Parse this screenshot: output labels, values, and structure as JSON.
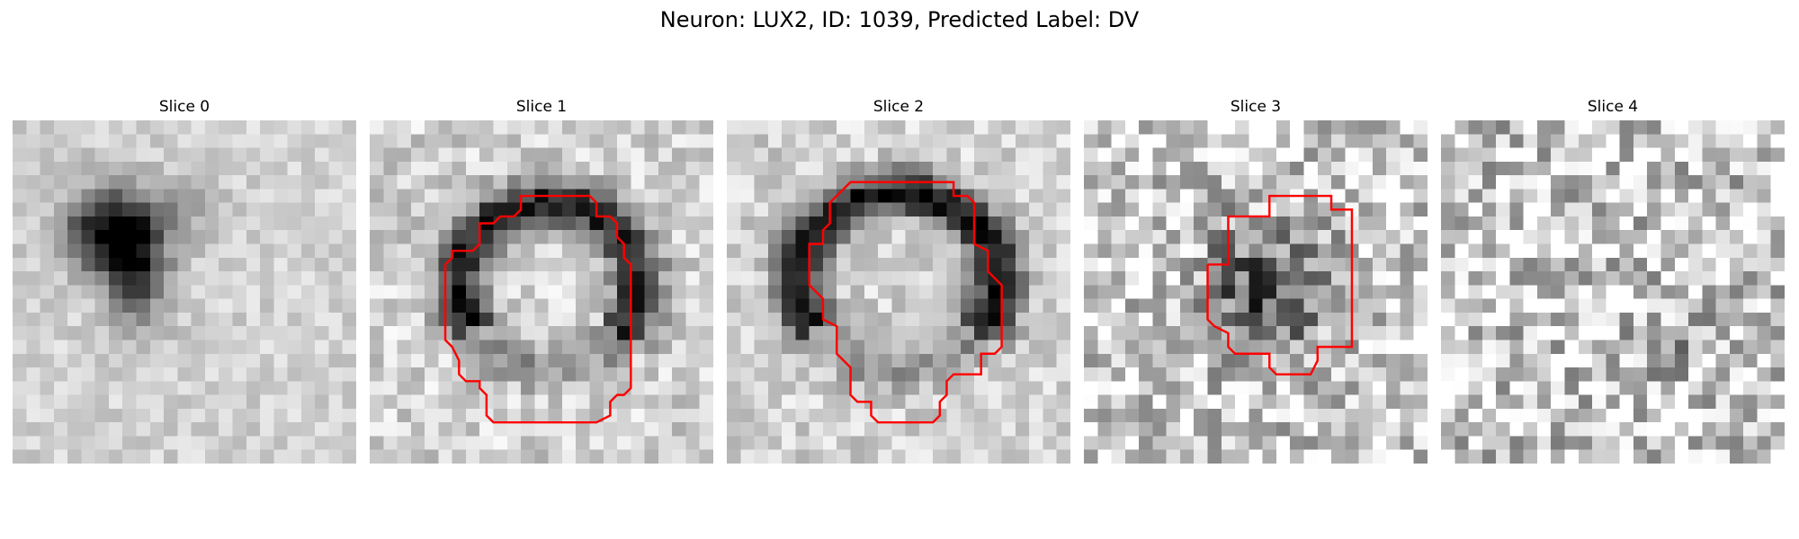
{
  "figure": {
    "title": "Neuron: LUX2, ID: 1039, Predicted Label: DV",
    "contour_color": "#ff0000"
  },
  "panels": [
    {
      "title": "Slice 0",
      "noise": 0.1,
      "blobs": [
        {
          "cx": 6.5,
          "cy": 7.5,
          "rx": 3.2,
          "ry": 3.0,
          "s": 0.75
        },
        {
          "cx": 8.5,
          "cy": 10.5,
          "rx": 2.2,
          "ry": 4.0,
          "s": 0.55
        },
        {
          "cx": 12,
          "cy": 6,
          "rx": 3.0,
          "ry": 2.5,
          "s": 0.15
        }
      ]
    },
    {
      "title": "Slice 1",
      "noise": 0.16,
      "ring": {
        "cx": 12.5,
        "cy": 11.5,
        "rx": 6.5,
        "ry": 6.0,
        "w": 2.6,
        "s": 0.7,
        "gap": "bottom"
      }
    },
    {
      "title": "Slice 2",
      "noise": 0.14,
      "ring": {
        "cx": 12,
        "cy": 11.2,
        "rx": 7.2,
        "ry": 6.4,
        "w": 2.6,
        "s": 0.75,
        "gap": "bottom"
      }
    },
    {
      "title": "Slice 3",
      "noise": 0.3,
      "blobs": [
        {
          "cx": 12.5,
          "cy": 12,
          "rx": 4.5,
          "ry": 5.0,
          "s": 0.5
        }
      ]
    },
    {
      "title": "Slice 4",
      "noise": 0.34,
      "blobs": [
        {
          "cx": 16,
          "cy": 16,
          "rx": 3,
          "ry": 2.5,
          "s": 0.3
        }
      ]
    }
  ]
}
